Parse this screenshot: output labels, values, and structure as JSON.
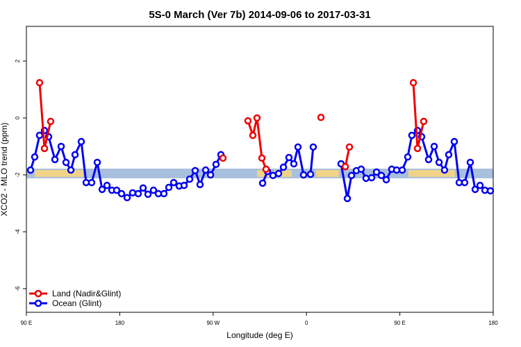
{
  "chart_data": {
    "type": "line",
    "title": "5S-0 March (Ver 7b)   2014-09-06 to 2017-03-31",
    "x_label": "Longitude (deg E)",
    "y_label": "XCO2 - MLO trend (ppm)",
    "xlim": [
      90,
      540
    ],
    "ylim": [
      -6.83,
      3.22
    ],
    "xticks": [
      {
        "value": 90,
        "label": "90 E"
      },
      180,
      {
        "value": 270,
        "label": "90 W"
      },
      {
        "value": 360,
        "label": "0"
      },
      {
        "value": 450,
        "label": "90 E"
      },
      {
        "value": 540,
        "label": "180"
      }
    ],
    "yticks": [
      2,
      0,
      -2,
      -4,
      -6
    ],
    "legend": "bottom-left",
    "band": {
      "ylim": [
        -2.12,
        -1.78
      ],
      "color": "#a8bfdd",
      "land_color": "#f7d57f",
      "land": [
        [
          98.0,
          144.9
        ],
        [
          312.3,
          324.4
        ],
        [
          329.1,
          345.8
        ],
        [
          369.2,
          391.3
        ],
        [
          458.3,
          503.2
        ]
      ]
    },
    "series": [
      {
        "name": "Ocean (Glint)",
        "color": "#0000ee",
        "x": [
          94.0,
          98.0,
          102.7,
          107.4,
          111.4,
          117.5,
          123.5,
          128.2,
          132.9,
          136.9,
          142.9,
          147.6,
          152.9,
          158.3,
          163.0,
          167.7,
          172.4,
          177.0,
          181.7,
          187.1,
          192.4,
          197.8,
          202.5,
          207.2,
          212.5,
          217.2,
          222.6,
          227.3,
          232.0,
          237.3,
          242.0,
          247.4,
          252.7,
          257.4,
          262.8,
          267.5,
          272.8,
          277.5,
          null,
          317.7,
          322.4,
          327.7,
          333.1,
          337.8,
          343.1,
          347.8,
          351.8,
          357.2,
          363.9,
          366.5,
          null,
          393.3,
          399.4,
          403.4,
          408.1,
          412.7,
          417.4,
          422.8,
          427.5,
          432.2,
          436.9,
          442.2,
          446.9,
          452.3,
          457.6,
          461.6,
          467.0,
          471.0,
          477.7,
          483.1,
          487.8,
          493.1,
          497.1,
          502.5,
          507.2,
          512.5,
          517.9,
          522.6,
          527.3,
          532.0,
          537.3
        ],
        "values": [
          -1.83,
          -1.37,
          -0.61,
          -0.44,
          -0.66,
          -1.46,
          -1.0,
          -1.56,
          -1.83,
          -1.29,
          -0.83,
          -2.27,
          -2.27,
          -1.56,
          -2.51,
          -2.37,
          -2.54,
          -2.54,
          -2.66,
          -2.8,
          -2.63,
          -2.66,
          -2.46,
          -2.68,
          -2.54,
          -2.66,
          -2.66,
          -2.44,
          -2.27,
          -2.39,
          -2.37,
          -2.15,
          -1.85,
          -2.34,
          -1.83,
          -2.0,
          -1.63,
          -1.29,
          null,
          -2.29,
          -1.88,
          -2.02,
          -1.95,
          -1.73,
          -1.39,
          -1.61,
          -1.02,
          -2.0,
          -1.98,
          -1.02,
          null,
          -1.61,
          -2.83,
          -2.02,
          -1.85,
          -1.8,
          -2.12,
          -2.1,
          -1.9,
          -2.02,
          -2.17,
          -1.8,
          -1.83,
          -1.83,
          -1.37,
          -0.61,
          -0.44,
          -0.66,
          -1.46,
          -1.0,
          -1.56,
          -1.83,
          -1.29,
          -0.83,
          -2.27,
          -2.27,
          -1.56,
          -2.51,
          -2.37,
          -2.54,
          -2.56
        ]
      },
      {
        "name": "Land (Nadir&Glint)",
        "color": "#ee0000",
        "x": [
          102.7,
          107.4,
          113.4,
          null,
          279.5,
          null,
          303.6,
          308.3,
          312.3,
          317.0,
          321.0,
          null,
          373.9,
          null,
          397.4,
          401.4,
          null,
          463.0,
          467.0,
          473.0
        ],
        "values": [
          1.24,
          -1.07,
          -0.12,
          null,
          -1.41,
          null,
          -0.1,
          -0.61,
          0.0,
          -1.41,
          -1.8,
          null,
          0.02,
          null,
          -1.71,
          -1.02,
          null,
          1.24,
          -1.07,
          -0.12
        ]
      }
    ]
  }
}
